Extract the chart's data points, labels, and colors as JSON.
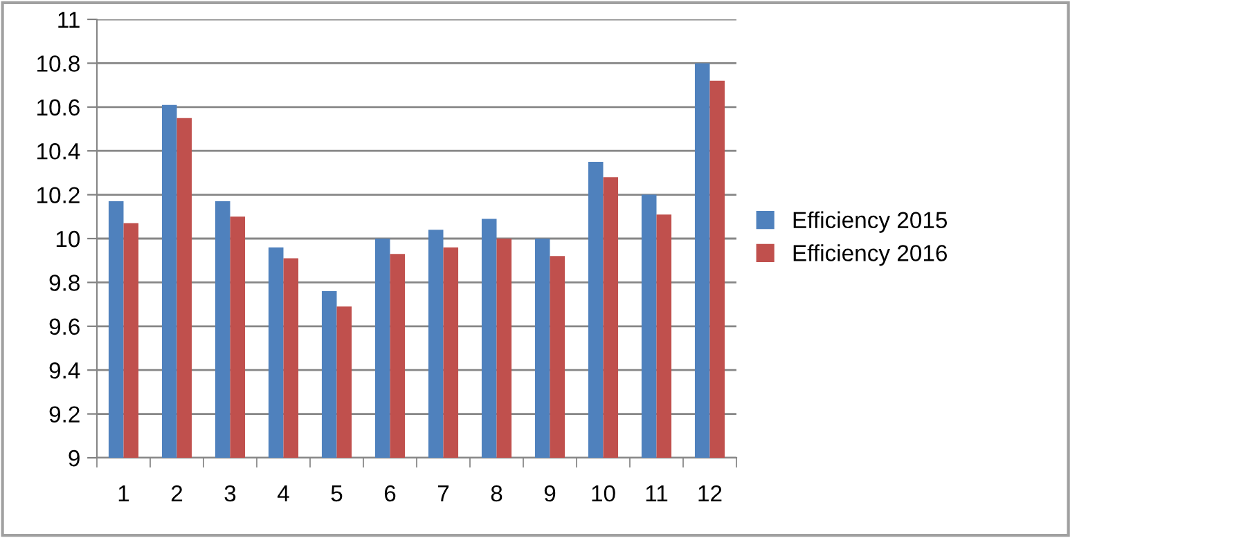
{
  "chart_data": {
    "type": "bar",
    "categories": [
      "1",
      "2",
      "3",
      "4",
      "5",
      "6",
      "7",
      "8",
      "9",
      "10",
      "11",
      "12"
    ],
    "series": [
      {
        "name": "Efficiency 2015",
        "color": "#4f81bd",
        "values": [
          10.17,
          10.61,
          10.17,
          9.96,
          9.76,
          10.0,
          10.04,
          10.09,
          10.0,
          10.35,
          10.2,
          10.8
        ]
      },
      {
        "name": "Efficiency 2016",
        "color": "#c0504d",
        "values": [
          10.07,
          10.55,
          10.1,
          9.91,
          9.69,
          9.93,
          9.96,
          10.0,
          9.92,
          10.28,
          10.11,
          10.72
        ]
      }
    ],
    "ylim": [
      9,
      11
    ],
    "yticks": [
      9,
      9.2,
      9.4,
      9.6,
      9.8,
      10,
      10.2,
      10.4,
      10.6,
      10.8,
      11
    ],
    "grid": "y",
    "legend": "right"
  }
}
